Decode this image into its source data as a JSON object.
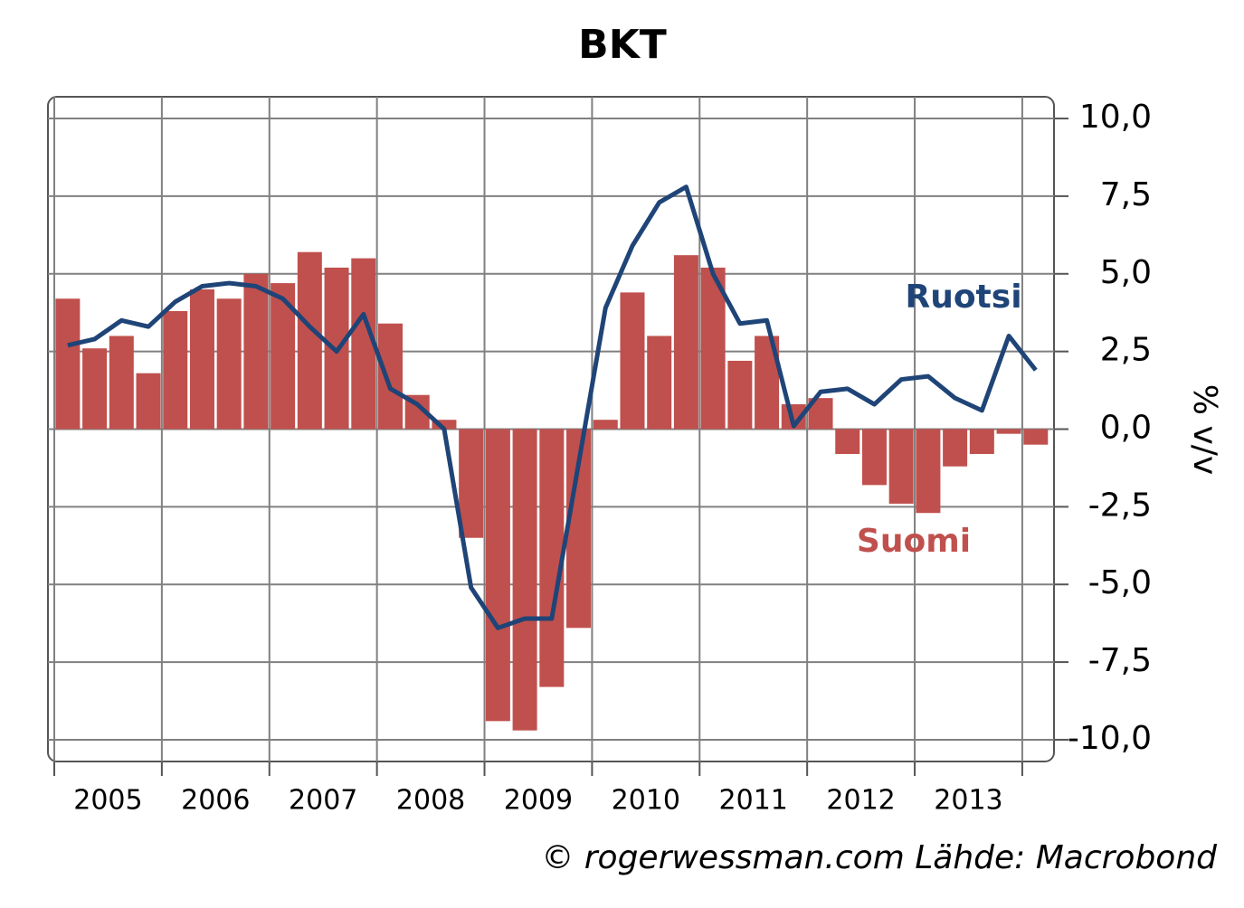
{
  "chart_data": {
    "type": "bar_line",
    "title": "BKT",
    "y_axis_label": "% v/v",
    "year_labels": [
      "2005",
      "2006",
      "2007",
      "2008",
      "2009",
      "2010",
      "2011",
      "2012",
      "2013"
    ],
    "ylim": [
      -10.7,
      10.7
    ],
    "yticks": [
      {
        "value": 10,
        "label": "10,0"
      },
      {
        "value": 7.5,
        "label": "7,5"
      },
      {
        "value": 5,
        "label": "5,0"
      },
      {
        "value": 2.5,
        "label": "2,5"
      },
      {
        "value": 0,
        "label": "0,0"
      },
      {
        "value": -2.5,
        "label": "-2,5"
      },
      {
        "value": -5,
        "label": "-5,0"
      },
      {
        "value": -7.5,
        "label": "-7,5"
      },
      {
        "value": -10,
        "label": "-10,0"
      }
    ],
    "grid": true,
    "series": [
      {
        "name": "Suomi",
        "kind": "bar",
        "color": "#c0504d",
        "values": [
          4.2,
          2.6,
          3.0,
          1.8,
          3.8,
          4.5,
          4.2,
          5.0,
          4.7,
          5.7,
          5.2,
          5.5,
          3.4,
          1.1,
          0.3,
          -3.5,
          -9.4,
          -9.7,
          -8.3,
          -6.4,
          0.3,
          4.4,
          3.0,
          5.6,
          5.2,
          2.2,
          3.0,
          0.8,
          1.0,
          -0.8,
          -1.8,
          -2.4,
          -2.7,
          -1.2,
          -0.8,
          -0.15,
          -0.5
        ]
      },
      {
        "name": "Ruotsi",
        "kind": "line",
        "color": "#1f4477",
        "values": [
          2.7,
          2.9,
          3.5,
          3.3,
          4.1,
          4.6,
          4.7,
          4.6,
          4.2,
          3.3,
          2.5,
          3.7,
          1.3,
          0.8,
          0.0,
          -5.1,
          -6.4,
          -6.1,
          -6.1,
          -1.1,
          3.9,
          5.9,
          7.3,
          7.8,
          5.0,
          3.4,
          3.5,
          0.1,
          1.2,
          1.3,
          0.8,
          1.6,
          1.7,
          1.0,
          0.6,
          3.0,
          1.9
        ]
      }
    ],
    "source": "© rogerwessman.com Lähde: Macrobond"
  }
}
